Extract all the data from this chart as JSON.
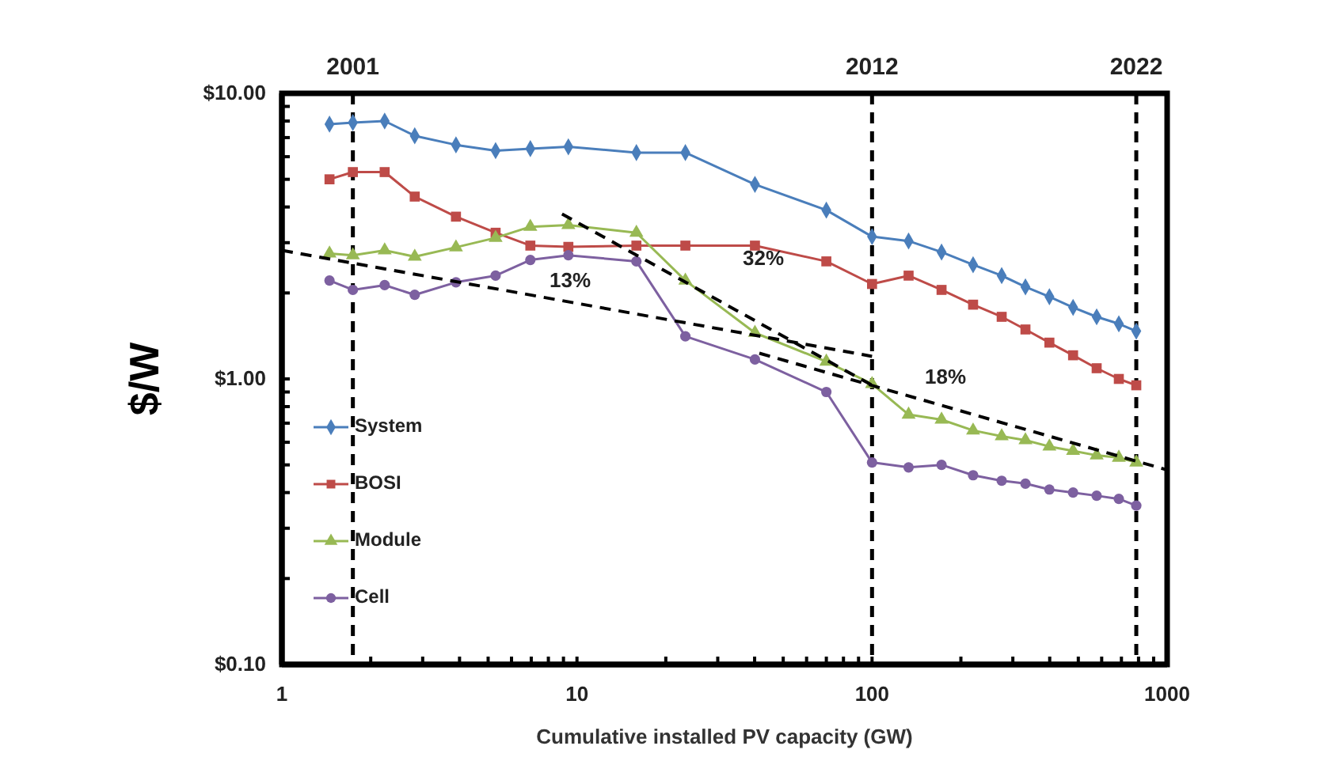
{
  "chart_data": {
    "type": "line",
    "xlabel": "Cumulative installed PV capacity (GW)",
    "ylabel": "$/W",
    "log": "xy",
    "grid": false,
    "legend": "left",
    "xlim": [
      1,
      1000
    ],
    "ylim": [
      0.1,
      10
    ],
    "xticks": [
      1,
      {
        "value": 2,
        "label": null
      },
      {
        "value": 3,
        "label": null
      },
      {
        "value": 4,
        "label": null
      },
      {
        "value": 5,
        "label": null
      },
      {
        "value": 6,
        "label": null
      },
      {
        "value": 7,
        "label": null
      },
      {
        "value": 8,
        "label": null
      },
      {
        "value": 9,
        "label": null
      },
      10,
      {
        "value": 20,
        "label": null
      },
      {
        "value": 30,
        "label": null
      },
      {
        "value": 40,
        "label": null
      },
      {
        "value": 50,
        "label": null
      },
      {
        "value": 60,
        "label": null
      },
      {
        "value": 70,
        "label": null
      },
      {
        "value": 80,
        "label": null
      },
      {
        "value": 90,
        "label": null
      },
      100,
      {
        "value": 200,
        "label": null
      },
      {
        "value": 300,
        "label": null
      },
      {
        "value": 400,
        "label": null
      },
      {
        "value": 500,
        "label": null
      },
      {
        "value": 600,
        "label": null
      },
      {
        "value": 700,
        "label": null
      },
      {
        "value": 800,
        "label": null
      },
      {
        "value": 900,
        "label": null
      },
      1000
    ],
    "yticks": [
      {
        "value": 0.1,
        "label": "$0.10"
      },
      {
        "value": 0.2,
        "label": null
      },
      {
        "value": 0.3,
        "label": null
      },
      {
        "value": 0.4,
        "label": null
      },
      {
        "value": 0.5,
        "label": null
      },
      {
        "value": 0.6,
        "label": null
      },
      {
        "value": 0.7,
        "label": null
      },
      {
        "value": 0.8,
        "label": null
      },
      {
        "value": 0.9,
        "label": null
      },
      {
        "value": 1,
        "label": "$1.00"
      },
      {
        "value": 2,
        "label": null
      },
      {
        "value": 3,
        "label": null
      },
      {
        "value": 4,
        "label": null
      },
      {
        "value": 5,
        "label": null
      },
      {
        "value": 6,
        "label": null
      },
      {
        "value": 7,
        "label": null
      },
      {
        "value": 8,
        "label": null
      },
      {
        "value": 9,
        "label": null
      },
      {
        "value": 10,
        "label": "$10.00"
      }
    ],
    "x": [
      1.45,
      1.74,
      2.23,
      2.82,
      3.89,
      5.3,
      6.95,
      9.35,
      15.9,
      23.3,
      40.1,
      70,
      100,
      133,
      172,
      220,
      275,
      331,
      399,
      480,
      577,
      686,
      786
    ],
    "series": [
      {
        "name": "System",
        "color": "#4a7ebb",
        "marker": "diamond",
        "values": [
          7.8,
          7.9,
          8.0,
          7.1,
          6.6,
          6.3,
          6.4,
          6.5,
          6.2,
          6.2,
          4.8,
          3.9,
          3.15,
          3.04,
          2.78,
          2.51,
          2.3,
          2.1,
          1.94,
          1.78,
          1.65,
          1.56,
          1.47
        ]
      },
      {
        "name": "BOSI",
        "color": "#be4b48",
        "marker": "square",
        "values": [
          5.0,
          5.3,
          5.3,
          4.35,
          3.7,
          3.25,
          2.93,
          2.9,
          2.93,
          2.93,
          2.93,
          2.58,
          2.15,
          2.3,
          2.05,
          1.82,
          1.65,
          1.49,
          1.34,
          1.21,
          1.09,
          1.0,
          0.95
        ]
      },
      {
        "name": "Module",
        "color": "#98b954",
        "marker": "triangle",
        "values": [
          2.75,
          2.71,
          2.82,
          2.68,
          2.89,
          3.12,
          3.41,
          3.46,
          3.25,
          2.21,
          1.45,
          1.15,
          0.96,
          0.75,
          0.72,
          0.66,
          0.63,
          0.61,
          0.58,
          0.56,
          0.54,
          0.53,
          0.51
        ]
      },
      {
        "name": "Cell",
        "color": "#7d60a0",
        "marker": "circle",
        "values": [
          2.21,
          2.05,
          2.13,
          1.97,
          2.18,
          2.3,
          2.61,
          2.71,
          2.58,
          1.41,
          1.17,
          0.9,
          0.51,
          0.49,
          0.5,
          0.46,
          0.44,
          0.43,
          0.41,
          0.4,
          0.39,
          0.38,
          0.36
        ]
      },
      {
        "color": "#000000",
        "marker": "none",
        "line_style": "dashed",
        "x": [
          1,
          100
        ],
        "values": [
          2.82,
          1.2
        ]
      },
      {
        "color": "#000000",
        "marker": "none",
        "line_style": "dashed",
        "x": [
          8.9,
          100
        ],
        "values": [
          3.78,
          0.95
        ]
      },
      {
        "color": "#000000",
        "marker": "none",
        "line_style": "dashed",
        "x": [
          41.5,
          1000
        ],
        "values": [
          1.23,
          0.48
        ]
      }
    ],
    "ref_lines": [
      {
        "axis": "x",
        "value": 1.74,
        "color": "#000000",
        "line_style": "dashed"
      },
      {
        "axis": "x",
        "value": 100,
        "color": "#000000",
        "line_style": "dashed"
      },
      {
        "axis": "x",
        "value": 786,
        "color": "#000000",
        "line_style": "dashed"
      }
    ],
    "annotations": [
      "13%",
      "32%",
      "18%",
      {
        "text": "2001",
        "x": 1.74,
        "y": 10
      },
      {
        "text": "2012",
        "x": 100,
        "y": 10
      },
      {
        "text": "2022",
        "x": 786,
        "y": 10
      }
    ]
  }
}
